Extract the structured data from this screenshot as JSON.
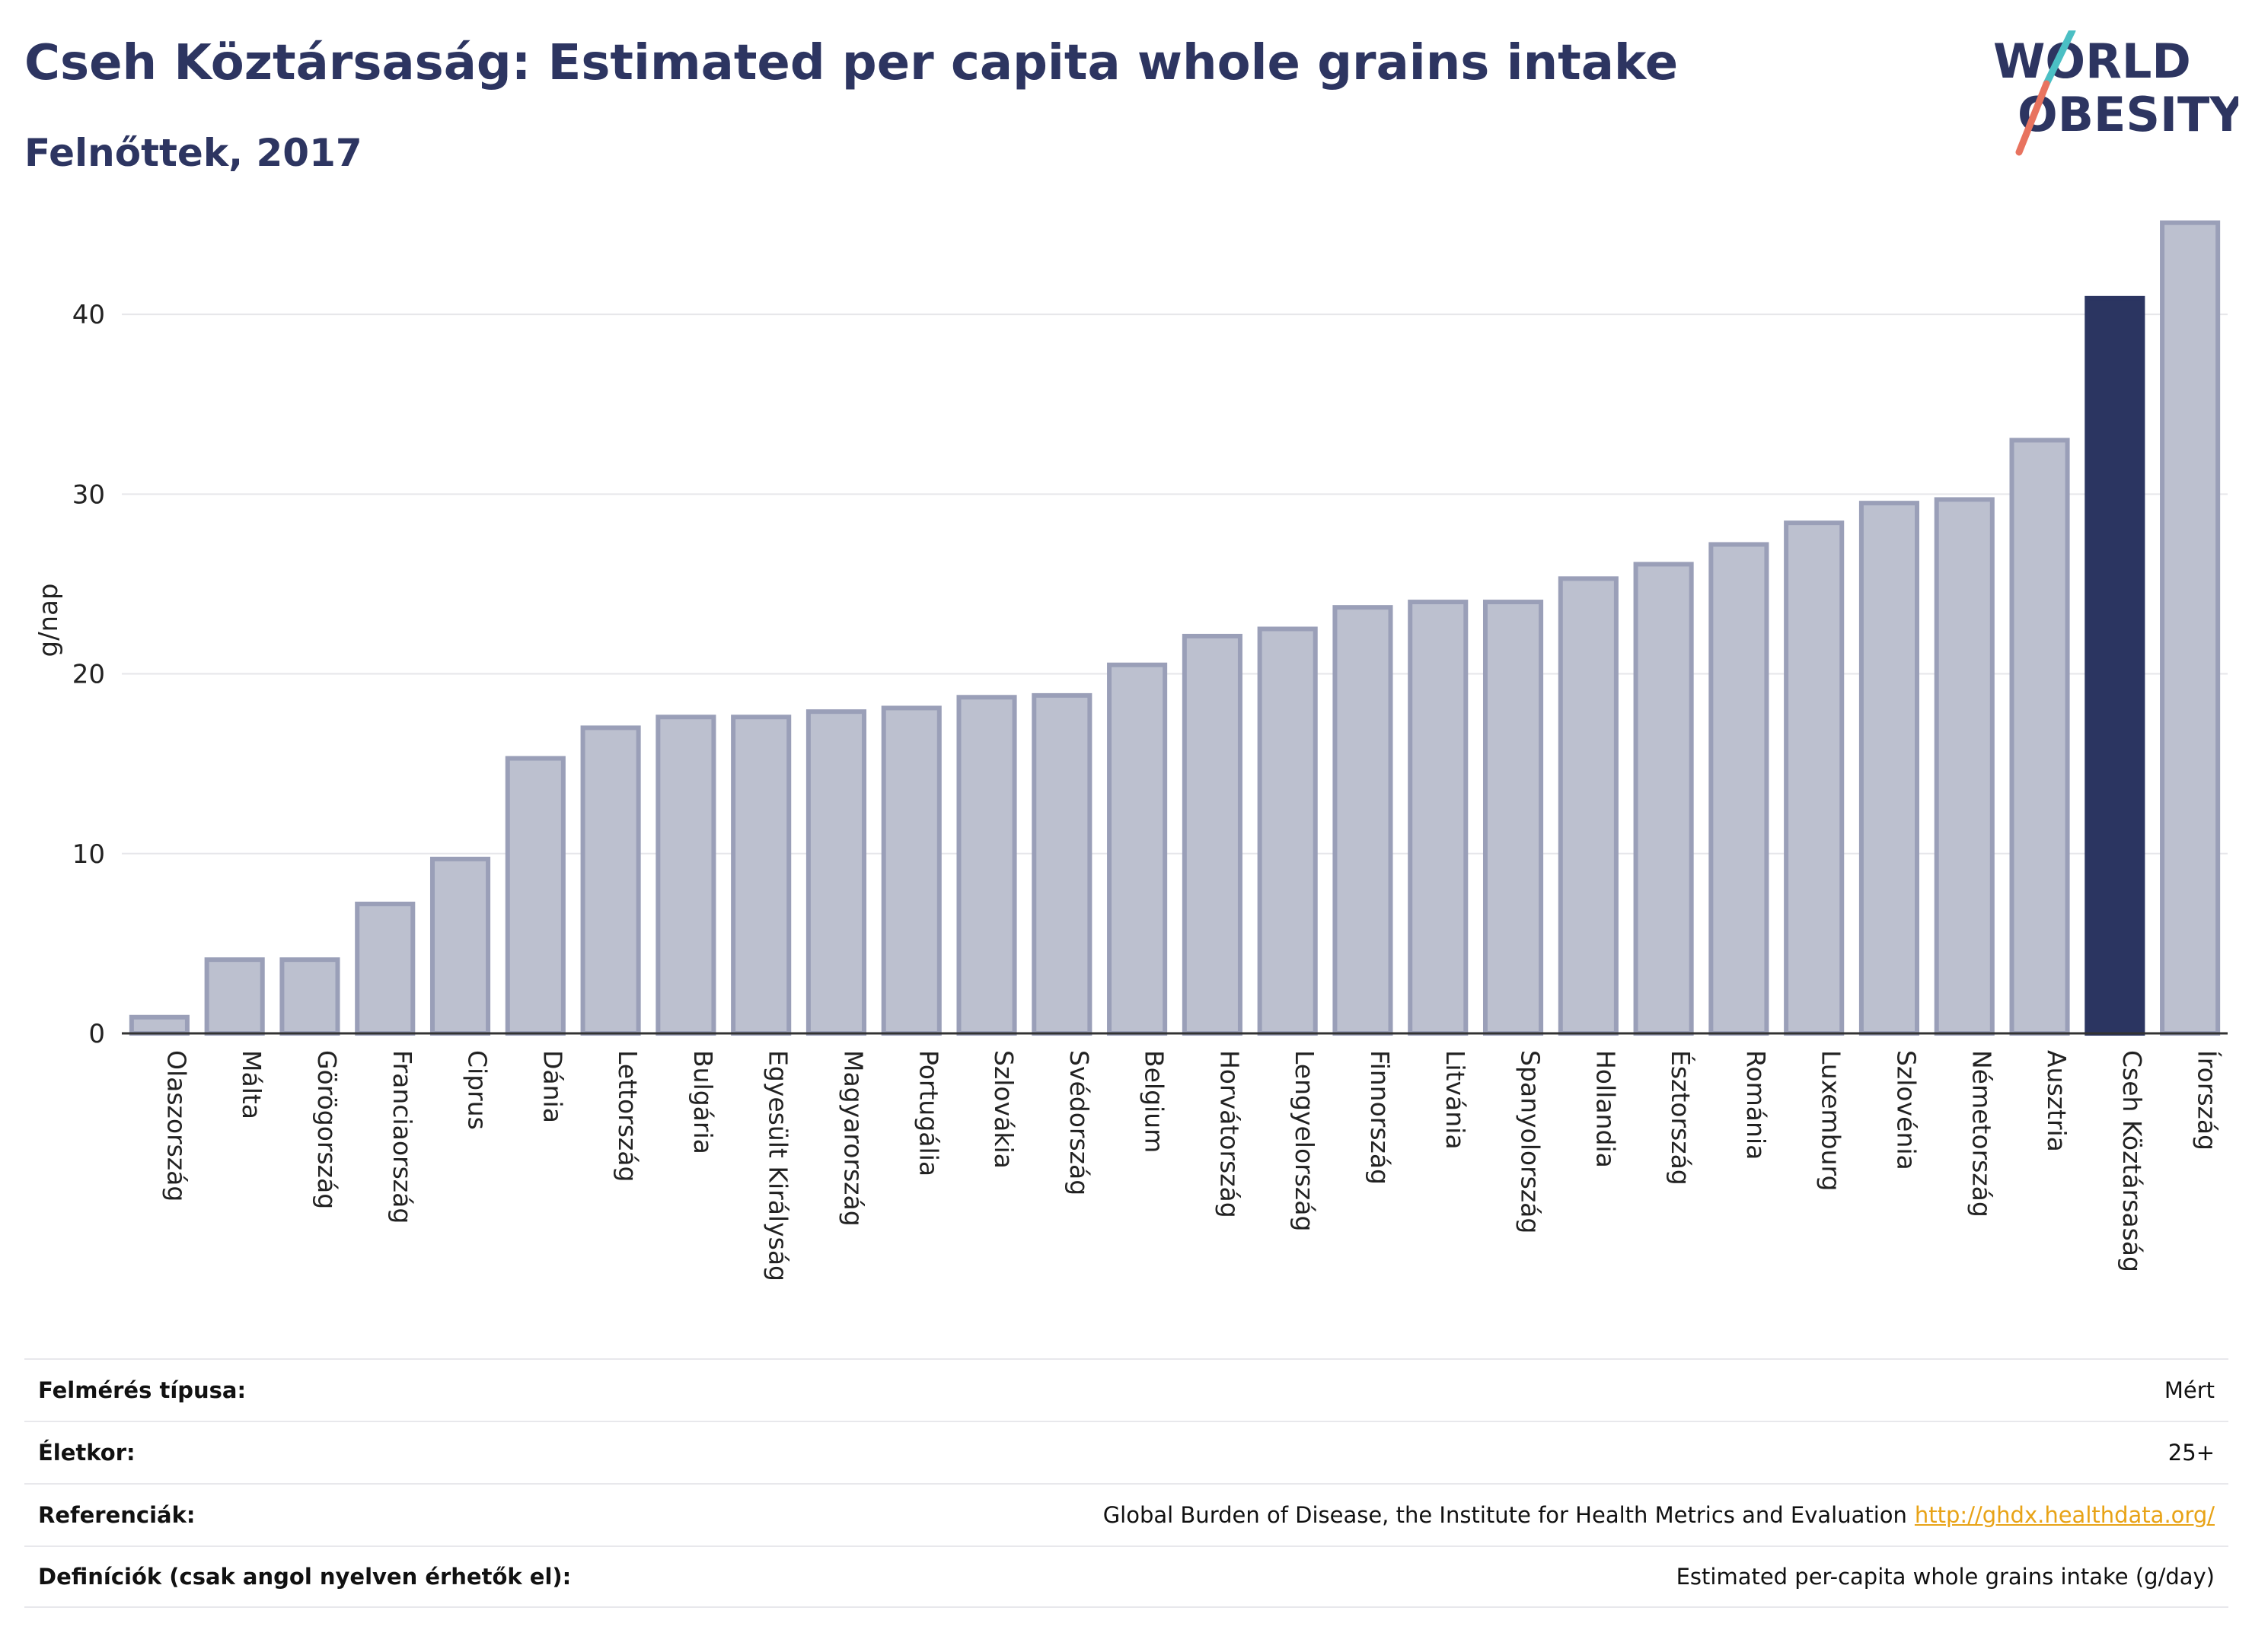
{
  "header": {
    "title": "Cseh Köztársaság: Estimated per capita whole grains intake",
    "subtitle": "Felnőttek, 2017"
  },
  "logo": {
    "line1": "WORLD",
    "line2": "OBESITY",
    "slash_colors": [
      "#4bbfc4",
      "#e8735f"
    ]
  },
  "colors": {
    "bar_default": "#bcc0cf",
    "bar_border": "#9a9fb8",
    "bar_highlight": "#2b3561",
    "text": "#2d3561",
    "grid": "#e6e6ea"
  },
  "chart_data": {
    "type": "bar",
    "title": "Cseh Köztársaság: Estimated per capita whole grains intake",
    "subtitle": "Felnőttek, 2017",
    "ylabel": "g/nap",
    "xlabel": "",
    "ylim": [
      0,
      45
    ],
    "yticks": [
      0,
      10,
      20,
      30,
      40
    ],
    "grid": true,
    "highlight": "Cseh Köztársaság",
    "categories": [
      "Olaszország",
      "Málta",
      "Görögország",
      "Franciaország",
      "Ciprus",
      "Dánia",
      "Lettország",
      "Bulgária",
      "Egyesült Királyság",
      "Magyarország",
      "Portugália",
      "Szlovákia",
      "Svédország",
      "Belgium",
      "Horvátország",
      "Lengyelország",
      "Finnország",
      "Litvánia",
      "Spanyolország",
      "Hollandia",
      "Észtország",
      "Románia",
      "Luxemburg",
      "Szlovénia",
      "Németország",
      "Ausztria",
      "Cseh Köztársaság",
      "Írország"
    ],
    "values": [
      0.9,
      4.1,
      4.1,
      7.2,
      9.7,
      15.3,
      17.0,
      17.6,
      17.6,
      17.9,
      18.1,
      18.7,
      18.8,
      20.5,
      22.1,
      22.5,
      23.7,
      24.0,
      24.0,
      25.3,
      26.1,
      27.2,
      28.4,
      29.5,
      29.7,
      33.0,
      40.9,
      45.1
    ]
  },
  "info": {
    "rows": [
      {
        "label": "Felmérés típusa:",
        "value": "Mért"
      },
      {
        "label": "Életkor:",
        "value": "25+"
      },
      {
        "label": "Referenciák:",
        "value": "Global Burden of Disease, the Institute for Health Metrics and Evaluation",
        "link": "http://ghdx.healthdata.org/"
      },
      {
        "label": "Definíciók (csak angol nyelven érhetők el):",
        "value": "Estimated per-capita whole grains intake (g/day)"
      }
    ]
  }
}
